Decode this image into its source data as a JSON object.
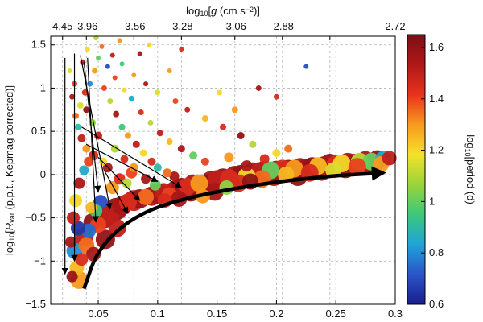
{
  "chart_data": {
    "type": "scatter",
    "title": "",
    "xlabel": "",
    "ylabel_parts": [
      "log",
      "10",
      "[",
      "R",
      "var",
      "  (p.p.t., Kepmag corrected)]"
    ],
    "top_axis_label_parts": [
      "log",
      "10",
      "[",
      "g",
      "  (cm s",
      "−2",
      ")]"
    ],
    "colorbar_label_parts": [
      "log",
      "10",
      "[period (d)"
    ],
    "xlim": [
      0.01,
      0.3
    ],
    "ylim": [
      -1.5,
      1.6
    ],
    "x_ticks": [
      0.05,
      0.1,
      0.15,
      0.2,
      0.25,
      0.3
    ],
    "x_tick_labels": [
      "0.05",
      "0.1",
      "0.15",
      "0.2",
      "0.25",
      "0.3"
    ],
    "y_ticks": [
      -1.5,
      -1,
      -0.5,
      0,
      0.5,
      1,
      1.5
    ],
    "y_tick_labels": [
      "−1.5",
      "−1",
      "−0.5",
      "0",
      "0.5",
      "1",
      "1.5"
    ],
    "top_ticks_x": [
      0.02,
      0.04,
      0.08,
      0.12,
      0.165,
      0.205,
      0.245,
      0.3
    ],
    "top_tick_labels": [
      "4.45",
      "3.96",
      "3.56",
      "3.28",
      "3.06",
      "2.88",
      "2.72"
    ],
    "top_tick_labels_x": [
      0.02,
      0.041,
      0.081,
      0.121,
      0.166,
      0.206,
      0.3
    ],
    "colorbar": {
      "range": [
        0.6,
        1.65
      ],
      "ticks": [
        0.6,
        0.8,
        1,
        1.2,
        1.4,
        1.6
      ],
      "tick_labels": [
        "0.6",
        "0.8",
        "1",
        "1.2",
        "1.4",
        "1.6"
      ],
      "colors": [
        "#1a1e8c",
        "#2a55c8",
        "#1fa3d8",
        "#3cc87a",
        "#9ad43a",
        "#f5e12a",
        "#f79a1e",
        "#e8321e",
        "#b01818",
        "#7a0f14"
      ]
    },
    "grid": true,
    "colorbar_position": "right",
    "points": [
      [
        0.028,
        -1.18,
        1.58,
        7
      ],
      [
        0.032,
        -1.08,
        1.25,
        9
      ],
      [
        0.034,
        -1.22,
        1.3,
        11
      ],
      [
        0.036,
        -0.98,
        1.45,
        8
      ],
      [
        0.03,
        -0.88,
        0.8,
        10
      ],
      [
        0.027,
        -0.78,
        1.55,
        7
      ],
      [
        0.038,
        -0.72,
        1.5,
        12
      ],
      [
        0.042,
        -0.65,
        0.75,
        9
      ],
      [
        0.045,
        -0.55,
        1.6,
        11
      ],
      [
        0.05,
        -0.58,
        1.4,
        10
      ],
      [
        0.055,
        -0.5,
        1.55,
        13
      ],
      [
        0.06,
        -0.46,
        1.5,
        12
      ],
      [
        0.048,
        -0.42,
        0.95,
        8
      ],
      [
        0.044,
        -0.38,
        1.25,
        7
      ],
      [
        0.052,
        -0.32,
        0.7,
        9
      ],
      [
        0.065,
        -0.4,
        1.6,
        14
      ],
      [
        0.07,
        -0.36,
        1.55,
        12
      ],
      [
        0.075,
        -0.32,
        1.45,
        11
      ],
      [
        0.08,
        -0.3,
        1.5,
        13
      ],
      [
        0.085,
        -0.28,
        1.58,
        12
      ],
      [
        0.09,
        -0.26,
        1.35,
        10
      ],
      [
        0.095,
        -0.25,
        1.55,
        12
      ],
      [
        0.1,
        -0.22,
        1.6,
        13
      ],
      [
        0.105,
        -0.2,
        1.5,
        11
      ],
      [
        0.11,
        -0.24,
        1.4,
        10
      ],
      [
        0.115,
        -0.18,
        1.55,
        12
      ],
      [
        0.12,
        -0.16,
        1.6,
        13
      ],
      [
        0.125,
        -0.14,
        1.45,
        11
      ],
      [
        0.13,
        -0.12,
        1.55,
        13
      ],
      [
        0.135,
        -0.1,
        1.3,
        11
      ],
      [
        0.14,
        -0.11,
        1.6,
        12
      ],
      [
        0.145,
        -0.08,
        1.55,
        13
      ],
      [
        0.15,
        -0.06,
        1.5,
        12
      ],
      [
        0.155,
        -0.05,
        1.6,
        13
      ],
      [
        0.16,
        -0.04,
        1.45,
        11
      ],
      [
        0.165,
        -0.02,
        1.55,
        13
      ],
      [
        0.17,
        0.0,
        1.6,
        12
      ],
      [
        0.175,
        -0.02,
        1.2,
        11
      ],
      [
        0.18,
        0.02,
        1.55,
        13
      ],
      [
        0.185,
        0.03,
        1.5,
        12
      ],
      [
        0.19,
        0.04,
        1.6,
        13
      ],
      [
        0.195,
        0.05,
        1.0,
        11
      ],
      [
        0.2,
        0.04,
        1.55,
        13
      ],
      [
        0.205,
        0.06,
        1.45,
        12
      ],
      [
        0.21,
        0.05,
        1.6,
        13
      ],
      [
        0.215,
        0.07,
        1.3,
        11
      ],
      [
        0.22,
        0.08,
        1.55,
        12
      ],
      [
        0.225,
        0.06,
        1.5,
        13
      ],
      [
        0.23,
        0.09,
        1.6,
        12
      ],
      [
        0.235,
        0.1,
        1.25,
        11
      ],
      [
        0.24,
        0.1,
        1.55,
        12
      ],
      [
        0.245,
        0.12,
        1.6,
        13
      ],
      [
        0.25,
        0.11,
        1.45,
        12
      ],
      [
        0.255,
        0.13,
        1.2,
        11
      ],
      [
        0.26,
        0.14,
        1.55,
        12
      ],
      [
        0.265,
        0.12,
        1.6,
        13
      ],
      [
        0.27,
        0.15,
        1.1,
        11
      ],
      [
        0.275,
        0.16,
        1.55,
        12
      ],
      [
        0.28,
        0.15,
        1.0,
        11
      ],
      [
        0.285,
        0.17,
        1.6,
        12
      ],
      [
        0.29,
        0.18,
        0.85,
        10
      ],
      [
        0.295,
        0.19,
        1.5,
        9
      ],
      [
        0.062,
        -0.15,
        1.3,
        8
      ],
      [
        0.068,
        -0.05,
        1.45,
        7
      ],
      [
        0.074,
        -0.1,
        1.1,
        6
      ],
      [
        0.078,
        0.02,
        1.4,
        7
      ],
      [
        0.058,
        0.08,
        1.55,
        6
      ],
      [
        0.054,
        0.15,
        1.2,
        5
      ],
      [
        0.046,
        0.22,
        1.45,
        6
      ],
      [
        0.04,
        0.3,
        1.3,
        5
      ],
      [
        0.036,
        0.42,
        1.5,
        5
      ],
      [
        0.033,
        0.55,
        0.9,
        4
      ],
      [
        0.031,
        0.68,
        1.35,
        4
      ],
      [
        0.035,
        0.8,
        1.15,
        4
      ],
      [
        0.039,
        0.95,
        1.45,
        4
      ],
      [
        0.043,
        1.05,
        0.8,
        3.5
      ],
      [
        0.047,
        1.2,
        1.3,
        3.5
      ],
      [
        0.05,
        1.35,
        1.0,
        3
      ],
      [
        0.041,
        1.45,
        1.2,
        3
      ],
      [
        0.037,
        1.3,
        1.5,
        3.5
      ],
      [
        0.055,
        1.0,
        1.4,
        3.5
      ],
      [
        0.06,
        0.85,
        1.1,
        3.5
      ],
      [
        0.065,
        0.7,
        1.55,
        4
      ],
      [
        0.07,
        0.55,
        0.95,
        4
      ],
      [
        0.075,
        0.45,
        1.3,
        4
      ],
      [
        0.082,
        0.35,
        1.5,
        4.5
      ],
      [
        0.088,
        0.25,
        1.2,
        4.5
      ],
      [
        0.095,
        0.15,
        1.45,
        5
      ],
      [
        0.1,
        0.08,
        0.9,
        5
      ],
      [
        0.108,
        0.02,
        1.35,
        5.5
      ],
      [
        0.114,
        -0.02,
        1.55,
        6
      ],
      [
        0.058,
        1.25,
        0.7,
        3
      ],
      [
        0.064,
        1.12,
        1.4,
        3
      ],
      [
        0.072,
        0.98,
        1.2,
        3
      ],
      [
        0.078,
        0.88,
        0.85,
        3.5
      ],
      [
        0.086,
        0.72,
        1.45,
        3.5
      ],
      [
        0.094,
        0.6,
        1.1,
        3.5
      ],
      [
        0.102,
        0.48,
        1.5,
        4
      ],
      [
        0.11,
        0.38,
        1.25,
        4
      ],
      [
        0.12,
        0.3,
        1.55,
        4.5
      ],
      [
        0.13,
        0.22,
        1.0,
        5
      ],
      [
        0.14,
        0.15,
        1.4,
        5
      ],
      [
        0.16,
        0.2,
        1.3,
        6
      ],
      [
        0.175,
        0.1,
        1.55,
        7
      ],
      [
        0.19,
        0.18,
        1.45,
        6
      ],
      [
        0.2,
        0.25,
        1.2,
        5
      ],
      [
        0.048,
        1.58,
        1.1,
        3
      ],
      [
        0.053,
        1.48,
        1.35,
        3
      ],
      [
        0.062,
        1.38,
        1.5,
        3
      ],
      [
        0.07,
        1.28,
        0.95,
        3
      ],
      [
        0.08,
        1.15,
        1.3,
        3
      ],
      [
        0.09,
        1.05,
        1.55,
        3
      ],
      [
        0.1,
        0.95,
        1.15,
        3.5
      ],
      [
        0.115,
        0.85,
        1.4,
        3.5
      ],
      [
        0.125,
        0.75,
        1.5,
        3.5
      ],
      [
        0.14,
        0.65,
        1.25,
        4
      ],
      [
        0.155,
        0.55,
        1.45,
        4
      ],
      [
        0.17,
        0.45,
        1.6,
        4.5
      ],
      [
        0.18,
        0.35,
        1.1,
        4.5
      ],
      [
        0.21,
        0.3,
        1.35,
        5
      ],
      [
        0.225,
        1.25,
        0.7,
        3
      ],
      [
        0.2,
        0.9,
        1.45,
        3.5
      ],
      [
        0.185,
        1.0,
        1.55,
        3.5
      ],
      [
        0.165,
        0.75,
        1.3,
        4
      ],
      [
        0.152,
        0.95,
        1.2,
        3.5
      ],
      [
        0.11,
        1.2,
        1.3,
        3
      ],
      [
        0.085,
        1.4,
        1.55,
        3
      ],
      [
        0.093,
        1.5,
        1.2,
        3
      ],
      [
        0.12,
        1.45,
        1.45,
        3
      ],
      [
        0.068,
        1.55,
        1.3,
        3
      ],
      [
        0.04,
        0.75,
        1.6,
        4
      ],
      [
        0.045,
        0.6,
        1.05,
        4.5
      ],
      [
        0.05,
        0.45,
        1.5,
        5
      ],
      [
        0.042,
        0.15,
        1.4,
        6
      ],
      [
        0.038,
        0.05,
        0.85,
        6
      ],
      [
        0.034,
        -0.1,
        1.55,
        7
      ],
      [
        0.031,
        -0.3,
        1.2,
        8
      ],
      [
        0.029,
        -0.5,
        1.5,
        8
      ],
      [
        0.033,
        -0.62,
        0.65,
        9
      ],
      [
        0.04,
        -0.82,
        1.35,
        10
      ],
      [
        0.046,
        -0.92,
        1.55,
        9
      ],
      [
        0.056,
        -0.75,
        1.6,
        12
      ],
      [
        0.066,
        -0.62,
        1.5,
        11
      ],
      [
        0.03,
        1.05,
        1.4,
        3.5
      ],
      [
        0.028,
        0.9,
        1.55,
        3.5
      ],
      [
        0.026,
        1.2,
        1.15,
        3
      ],
      [
        0.064,
        0.3,
        1.1,
        5
      ],
      [
        0.072,
        0.18,
        1.45,
        5
      ],
      [
        0.08,
        0.08,
        1.3,
        5.5
      ],
      [
        0.09,
        -0.05,
        1.55,
        6
      ],
      [
        0.098,
        -0.12,
        1.0,
        7
      ],
      [
        0.106,
        -0.3,
        1.45,
        9
      ],
      [
        0.118,
        -0.28,
        1.55,
        10
      ],
      [
        0.128,
        -0.2,
        1.6,
        12
      ],
      [
        0.138,
        -0.25,
        1.3,
        9
      ],
      [
        0.148,
        -0.2,
        1.55,
        11
      ],
      [
        0.158,
        -0.15,
        1.05,
        9
      ],
      [
        0.168,
        -0.1,
        1.45,
        11
      ],
      [
        0.178,
        -0.08,
        1.6,
        10
      ],
      [
        0.188,
        -0.05,
        1.35,
        11
      ],
      [
        0.198,
        -0.02,
        1.55,
        12
      ],
      [
        0.208,
        0.0,
        1.25,
        10
      ],
      [
        0.218,
        -0.02,
        1.6,
        12
      ],
      [
        0.228,
        0.02,
        1.45,
        11
      ],
      [
        0.238,
        0.04,
        1.55,
        12
      ],
      [
        0.248,
        0.05,
        1.15,
        10
      ],
      [
        0.258,
        0.07,
        1.6,
        12
      ],
      [
        0.268,
        0.09,
        1.4,
        11
      ],
      [
        0.278,
        0.1,
        1.55,
        12
      ],
      [
        0.288,
        0.12,
        1.3,
        10
      ]
    ],
    "arrows": [
      {
        "from": [
          0.022,
          1.35
        ],
        "to": [
          0.022,
          -1.15
        ]
      },
      {
        "from": [
          0.03,
          1.4
        ],
        "to": [
          0.03,
          -1.0
        ]
      },
      {
        "from": [
          0.035,
          1.38
        ],
        "to": [
          0.06,
          -0.4
        ]
      },
      {
        "from": [
          0.038,
          1.3
        ],
        "to": [
          0.05,
          -0.2
        ]
      },
      {
        "from": [
          0.041,
          1.35
        ],
        "to": [
          0.048,
          -0.55
        ]
      },
      {
        "from": [
          0.036,
          0.55
        ],
        "to": [
          0.12,
          -0.15
        ]
      },
      {
        "from": [
          0.04,
          0.35
        ],
        "to": [
          0.1,
          -0.08
        ]
      },
      {
        "from": [
          0.05,
          0.2
        ],
        "to": [
          0.085,
          -0.3
        ]
      },
      {
        "from": [
          0.055,
          0.05
        ],
        "to": [
          0.075,
          -0.45
        ]
      }
    ],
    "trend_curve": [
      [
        0.038,
        -1.32
      ],
      [
        0.05,
        -0.85
      ],
      [
        0.08,
        -0.48
      ],
      [
        0.12,
        -0.28
      ],
      [
        0.18,
        -0.12
      ],
      [
        0.24,
        -0.02
      ],
      [
        0.29,
        0.02
      ]
    ]
  }
}
